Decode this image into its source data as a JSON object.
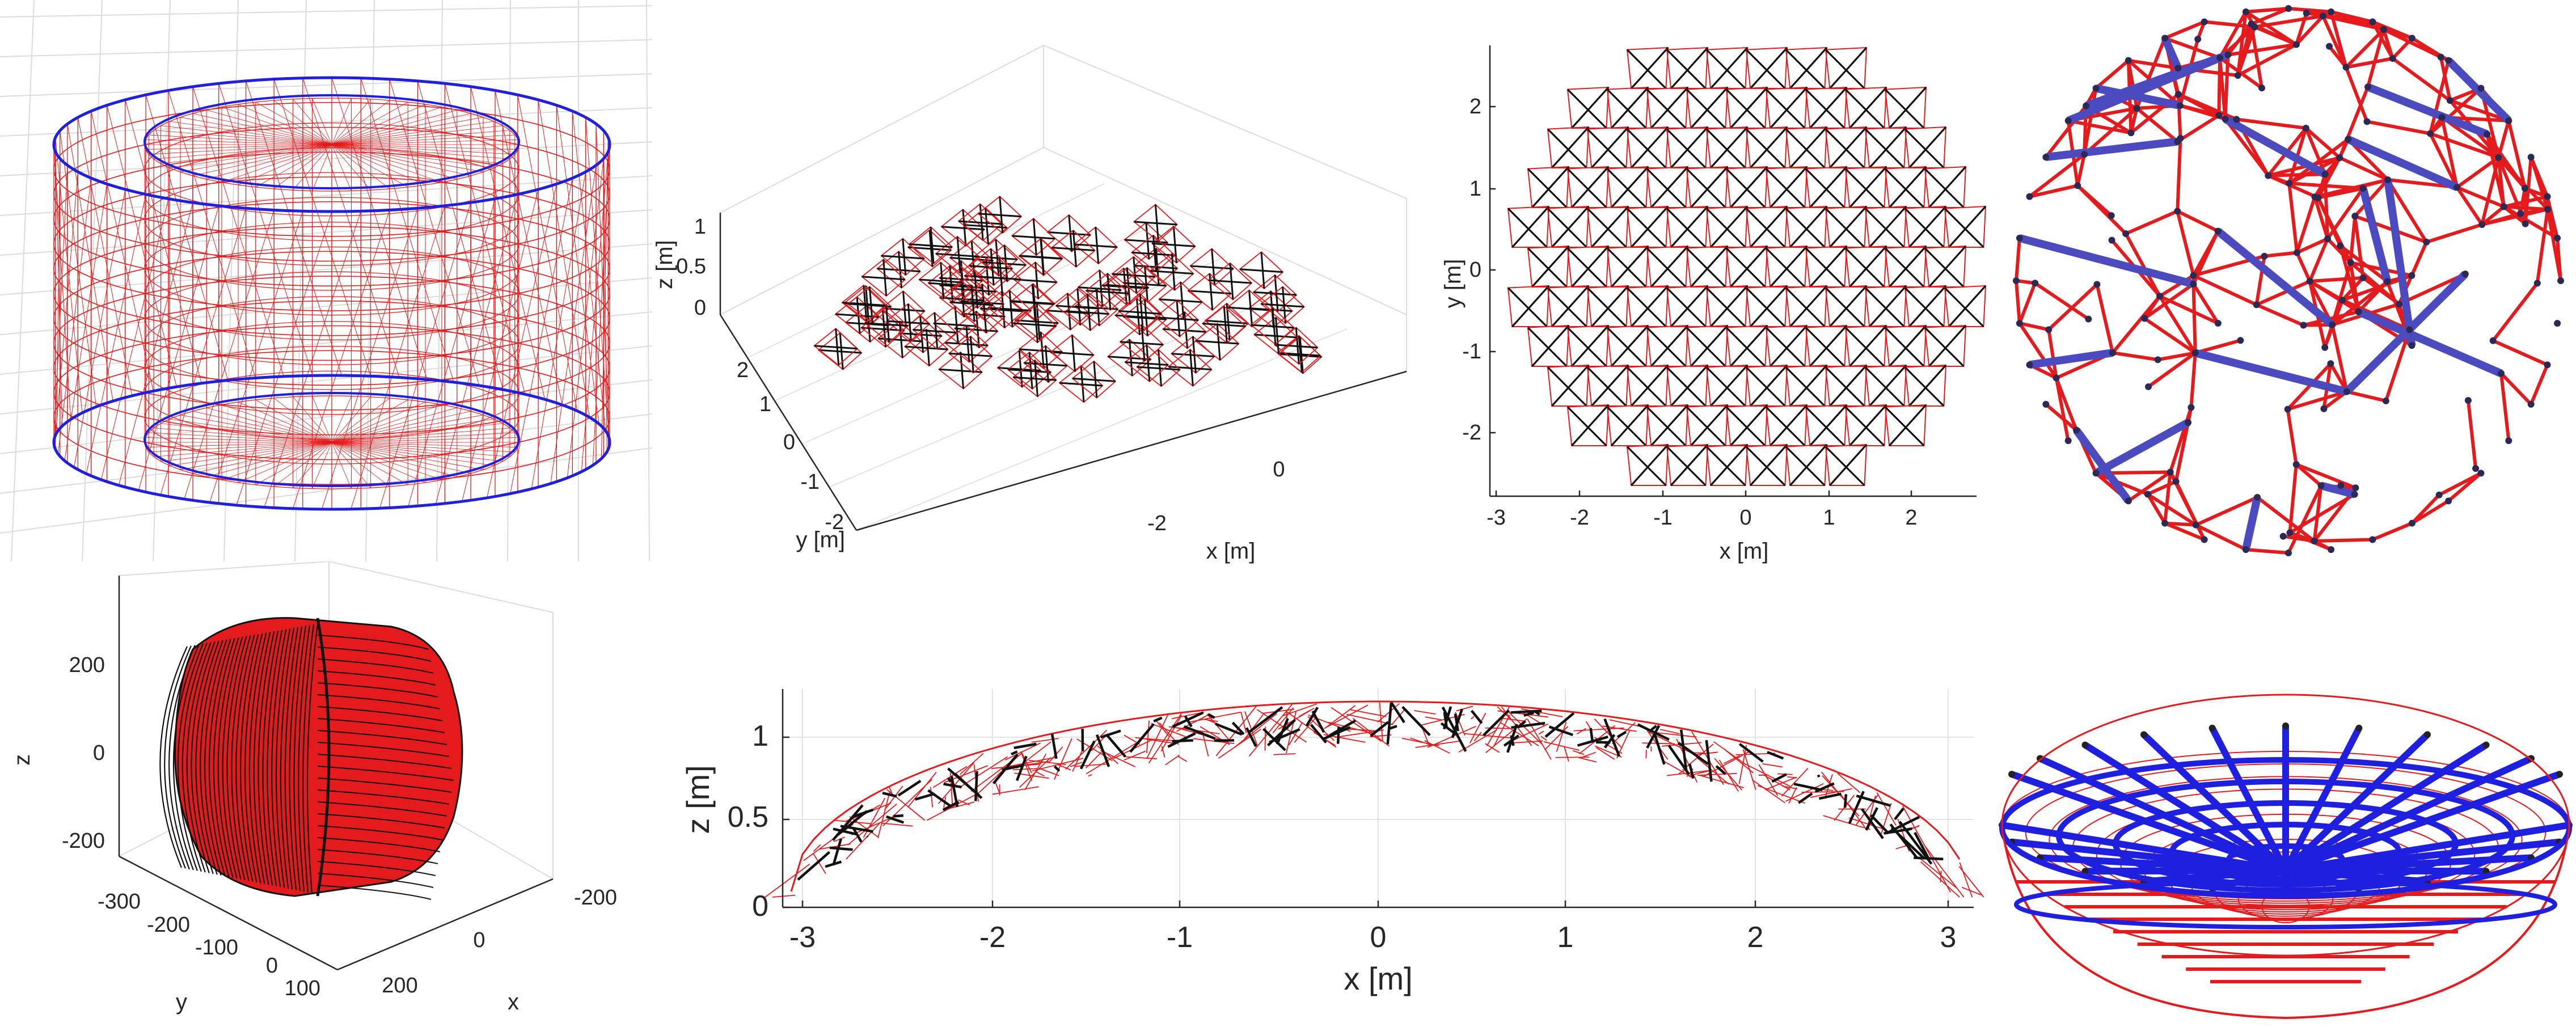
{
  "colors": {
    "red": "#e41a1c",
    "black": "#111111",
    "blue": "#1f1fe0",
    "navy": "#4b4bbf",
    "grid": "#dcdcdc",
    "axis": "#262626"
  },
  "panel_dome_3d": {
    "zlabel": "z [m]",
    "ylabel": "y [m]",
    "xlabel": "x [m]",
    "zticks": [
      "1",
      "0.5",
      "0"
    ],
    "yticks": [
      "2",
      "1",
      "0",
      "-1",
      "-2"
    ],
    "xticks": [
      "-2",
      "0"
    ]
  },
  "panel_dome_top": {
    "ylabel": "y [m]",
    "xlabel": "x [m]",
    "yticks": [
      "2",
      "1",
      "0",
      "-1",
      "-2"
    ],
    "xticks": [
      "-3",
      "-2",
      "-1",
      "0",
      "1",
      "2"
    ]
  },
  "panel_cylinder_box": {
    "zlabel": "z",
    "ylabel": "y",
    "xlabel": "x",
    "zticks": [
      "200",
      "0",
      "-200"
    ],
    "yticks": [
      "-300",
      "-200",
      "-100",
      "0",
      "100"
    ],
    "xticks": [
      "-200",
      "0",
      "200"
    ]
  },
  "panel_dome_side": {
    "ylabel": "z [m]",
    "xlabel": "x [m]",
    "yticks": [
      "1",
      "0.5",
      "0"
    ],
    "xticks": [
      "-3",
      "-2",
      "-1",
      "0",
      "1",
      "2",
      "3"
    ]
  }
}
